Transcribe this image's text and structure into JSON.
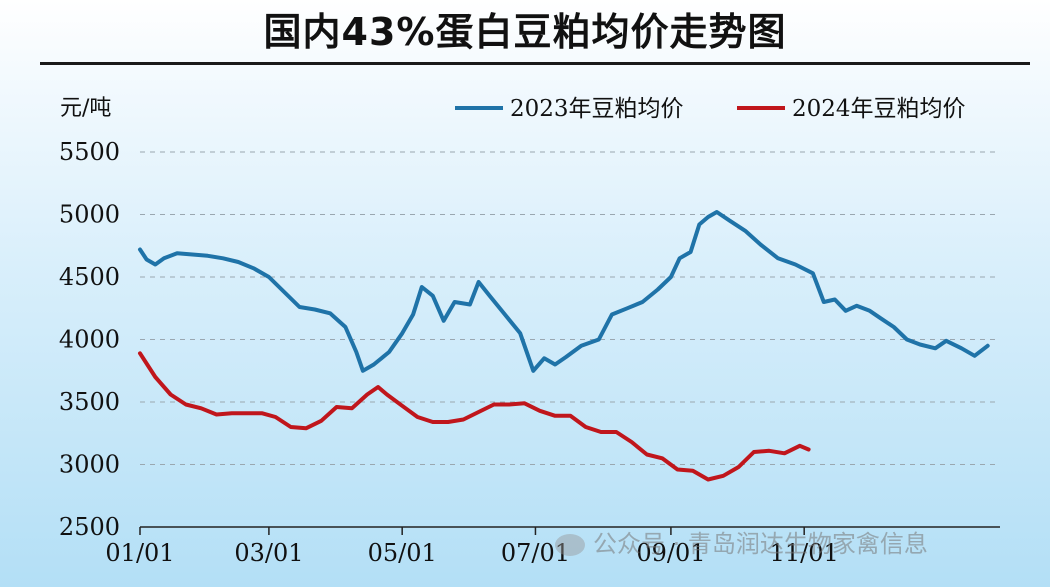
{
  "chart_data": {
    "type": "line",
    "title": "国内43%蛋白豆粕均价走势图",
    "ylabel": "元/吨",
    "xlabel": "",
    "ylim": [
      2500,
      5500
    ],
    "yticks": [
      5500,
      5000,
      4500,
      4000,
      3500,
      3000,
      2500
    ],
    "xlim": [
      "01/01",
      "12/31"
    ],
    "xticks": [
      "01/01",
      "03/01",
      "05/01",
      "07/01",
      "09/01",
      "11/01"
    ],
    "grid": true,
    "legend_position": "top-right",
    "series": [
      {
        "name": "2023年豆粕均价",
        "color": "#1f73a8",
        "points": [
          [
            "01/01",
            4720
          ],
          [
            "01/04",
            4640
          ],
          [
            "01/08",
            4600
          ],
          [
            "01/12",
            4650
          ],
          [
            "01/18",
            4690
          ],
          [
            "01/25",
            4680
          ],
          [
            "02/01",
            4670
          ],
          [
            "02/08",
            4650
          ],
          [
            "02/15",
            4620
          ],
          [
            "02/22",
            4570
          ],
          [
            "03/01",
            4500
          ],
          [
            "03/08",
            4380
          ],
          [
            "03/15",
            4260
          ],
          [
            "03/22",
            4240
          ],
          [
            "03/29",
            4210
          ],
          [
            "04/05",
            4100
          ],
          [
            "04/10",
            3900
          ],
          [
            "04/13",
            3750
          ],
          [
            "04/18",
            3800
          ],
          [
            "04/25",
            3900
          ],
          [
            "05/01",
            4050
          ],
          [
            "05/06",
            4200
          ],
          [
            "05/10",
            4420
          ],
          [
            "05/15",
            4350
          ],
          [
            "05/20",
            4150
          ],
          [
            "05/25",
            4300
          ],
          [
            "06/01",
            4280
          ],
          [
            "06/05",
            4460
          ],
          [
            "06/10",
            4350
          ],
          [
            "06/17",
            4200
          ],
          [
            "06/24",
            4050
          ],
          [
            "06/30",
            3750
          ],
          [
            "07/05",
            3850
          ],
          [
            "07/10",
            3800
          ],
          [
            "07/15",
            3860
          ],
          [
            "07/22",
            3950
          ],
          [
            "07/30",
            4000
          ],
          [
            "08/05",
            4200
          ],
          [
            "08/12",
            4250
          ],
          [
            "08/19",
            4300
          ],
          [
            "08/26",
            4400
          ],
          [
            "09/01",
            4500
          ],
          [
            "09/05",
            4650
          ],
          [
            "09/10",
            4700
          ],
          [
            "09/14",
            4920
          ],
          [
            "09/18",
            4980
          ],
          [
            "09/22",
            5020
          ],
          [
            "09/28",
            4950
          ],
          [
            "10/05",
            4870
          ],
          [
            "10/12",
            4760
          ],
          [
            "10/20",
            4650
          ],
          [
            "10/28",
            4600
          ],
          [
            "11/05",
            4530
          ],
          [
            "11/10",
            4300
          ],
          [
            "11/15",
            4320
          ],
          [
            "11/20",
            4230
          ],
          [
            "11/25",
            4270
          ],
          [
            "12/01",
            4230
          ],
          [
            "12/06",
            4170
          ],
          [
            "12/12",
            4100
          ],
          [
            "12/18",
            4000
          ],
          [
            "12/24",
            3960
          ],
          [
            "12/31",
            3930
          ],
          [
            "01/05",
            3990
          ],
          [
            "01/12",
            3930
          ],
          [
            "01/18",
            3870
          ],
          [
            "01/24",
            3950
          ]
        ]
      },
      {
        "name": "2024年豆粕均价",
        "color": "#c0161c",
        "points": [
          [
            "01/01",
            3890
          ],
          [
            "01/08",
            3700
          ],
          [
            "01/15",
            3560
          ],
          [
            "01/22",
            3480
          ],
          [
            "01/29",
            3450
          ],
          [
            "02/05",
            3400
          ],
          [
            "02/12",
            3410
          ],
          [
            "02/19",
            3410
          ],
          [
            "02/26",
            3410
          ],
          [
            "03/04",
            3380
          ],
          [
            "03/11",
            3300
          ],
          [
            "03/18",
            3290
          ],
          [
            "03/25",
            3350
          ],
          [
            "04/01",
            3460
          ],
          [
            "04/08",
            3450
          ],
          [
            "04/15",
            3560
          ],
          [
            "04/20",
            3620
          ],
          [
            "04/24",
            3560
          ],
          [
            "05/01",
            3470
          ],
          [
            "05/08",
            3380
          ],
          [
            "05/15",
            3340
          ],
          [
            "05/22",
            3340
          ],
          [
            "05/29",
            3360
          ],
          [
            "06/05",
            3420
          ],
          [
            "06/12",
            3480
          ],
          [
            "06/19",
            3480
          ],
          [
            "06/26",
            3490
          ],
          [
            "07/03",
            3430
          ],
          [
            "07/10",
            3390
          ],
          [
            "07/17",
            3390
          ],
          [
            "07/24",
            3300
          ],
          [
            "07/31",
            3260
          ],
          [
            "08/07",
            3260
          ],
          [
            "08/14",
            3180
          ],
          [
            "08/21",
            3080
          ],
          [
            "08/28",
            3050
          ],
          [
            "09/04",
            2960
          ],
          [
            "09/11",
            2950
          ],
          [
            "09/18",
            2880
          ],
          [
            "09/25",
            2910
          ],
          [
            "10/02",
            2980
          ],
          [
            "10/09",
            3100
          ],
          [
            "10/16",
            3110
          ],
          [
            "10/23",
            3090
          ],
          [
            "10/30",
            3150
          ],
          [
            "11/03",
            3120
          ]
        ]
      }
    ]
  },
  "watermark": {
    "icon": "wechat-icon",
    "text": "公众号 · 青岛润达生物家禽信息"
  }
}
